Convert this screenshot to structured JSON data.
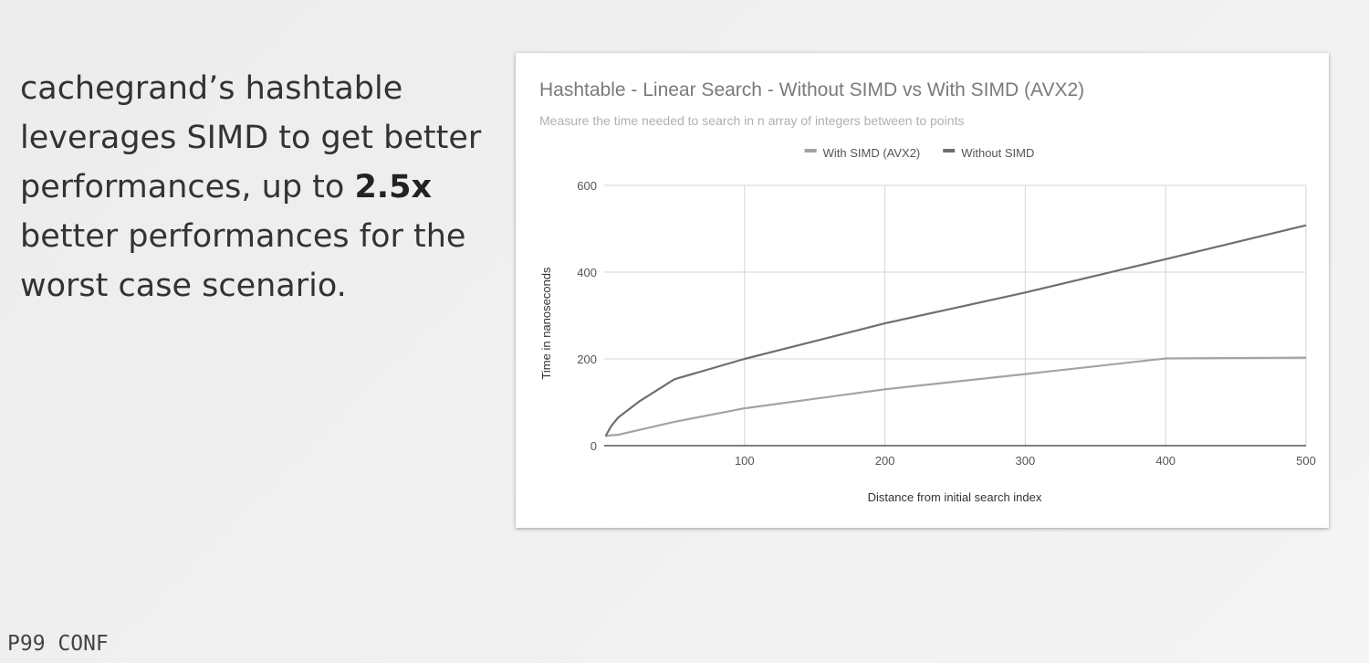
{
  "slide": {
    "text_before": "cachegrand’s hashtable leverages SIMD to get better performances, up to ",
    "text_bold": "2.5x",
    "text_after": " better performances for the worst case scenario.",
    "logo": "P99 CONF"
  },
  "colors": {
    "with_simd": "#a3a3a3",
    "without_simd": "#6f6f6f"
  },
  "chart_data": {
    "type": "line",
    "title": "Hashtable - Linear Search - Without SIMD vs With SIMD (AVX2)",
    "subtitle": "Measure the time needed to search in n array of integers between to points",
    "xlabel": "Distance from initial search index",
    "ylabel": "Time in nanoseconds",
    "xlim": [
      0,
      500
    ],
    "ylim": [
      0,
      600
    ],
    "xticks": [
      100,
      200,
      300,
      400,
      500
    ],
    "yticks": [
      0,
      200,
      400,
      600
    ],
    "grid": true,
    "legend_position": "top",
    "series": [
      {
        "name": "With SIMD (AVX2)",
        "x": [
          1,
          5,
          10,
          50,
          100,
          200,
          300,
          400,
          500
        ],
        "y": [
          22,
          24,
          25,
          55,
          86,
          130,
          165,
          201,
          203
        ]
      },
      {
        "name": "Without SIMD",
        "x": [
          1,
          5,
          10,
          25,
          50,
          100,
          200,
          300,
          400,
          500
        ],
        "y": [
          22,
          45,
          65,
          102,
          153,
          200,
          282,
          353,
          430,
          508
        ]
      }
    ]
  }
}
